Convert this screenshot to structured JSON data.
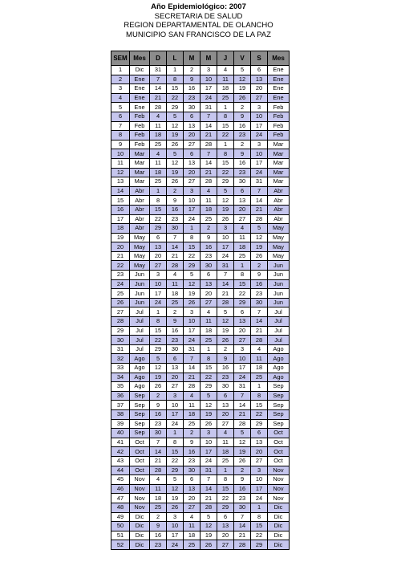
{
  "header": {
    "title": "Año Epidemiológico: 2007",
    "line2": "SECRETARIA DE SALUD",
    "line3": "REGION DEPARTAMENTAL DE OLANCHO",
    "line4": "MUNICIPIO SAN FRANCISCO DE LA PAZ"
  },
  "columns": [
    "SEM",
    "Mes",
    "D",
    "L",
    "M",
    "M",
    "J",
    "V",
    "S",
    "Mes"
  ],
  "colors": {
    "header_bg": "#8c8c8c",
    "alt_row_bg": "#c6c6ee",
    "row_bg": "#ffffff",
    "border": "#000000"
  },
  "weeks": [
    [
      "1",
      "Dic",
      "31",
      "1",
      "2",
      "3",
      "4",
      "5",
      "6",
      "Ene"
    ],
    [
      "2",
      "Ene",
      "7",
      "8",
      "9",
      "10",
      "11",
      "12",
      "13",
      "Ene"
    ],
    [
      "3",
      "Ene",
      "14",
      "15",
      "16",
      "17",
      "18",
      "19",
      "20",
      "Ene"
    ],
    [
      "4",
      "Ene",
      "21",
      "22",
      "23",
      "24",
      "25",
      "26",
      "27",
      "Ene"
    ],
    [
      "5",
      "Ene",
      "28",
      "29",
      "30",
      "31",
      "1",
      "2",
      "3",
      "Feb"
    ],
    [
      "6",
      "Feb",
      "4",
      "5",
      "6",
      "7",
      "8",
      "9",
      "10",
      "Feb"
    ],
    [
      "7",
      "Feb",
      "11",
      "12",
      "13",
      "14",
      "15",
      "16",
      "17",
      "Feb"
    ],
    [
      "8",
      "Feb",
      "18",
      "19",
      "20",
      "21",
      "22",
      "23",
      "24",
      "Feb"
    ],
    [
      "9",
      "Feb",
      "25",
      "26",
      "27",
      "28",
      "1",
      "2",
      "3",
      "Mar"
    ],
    [
      "10",
      "Mar",
      "4",
      "5",
      "6",
      "7",
      "8",
      "9",
      "10",
      "Mar"
    ],
    [
      "11",
      "Mar",
      "11",
      "12",
      "13",
      "14",
      "15",
      "16",
      "17",
      "Mar"
    ],
    [
      "12",
      "Mar",
      "18",
      "19",
      "20",
      "21",
      "22",
      "23",
      "24",
      "Mar"
    ],
    [
      "13",
      "Mar",
      "25",
      "26",
      "27",
      "28",
      "29",
      "30",
      "31",
      "Mar"
    ],
    [
      "14",
      "Abr",
      "1",
      "2",
      "3",
      "4",
      "5",
      "6",
      "7",
      "Abr"
    ],
    [
      "15",
      "Abr",
      "8",
      "9",
      "10",
      "11",
      "12",
      "13",
      "14",
      "Abr"
    ],
    [
      "16",
      "Abr",
      "15",
      "16",
      "17",
      "18",
      "19",
      "20",
      "21",
      "Abr"
    ],
    [
      "17",
      "Abr",
      "22",
      "23",
      "24",
      "25",
      "26",
      "27",
      "28",
      "Abr"
    ],
    [
      "18",
      "Abr",
      "29",
      "30",
      "1",
      "2",
      "3",
      "4",
      "5",
      "May"
    ],
    [
      "19",
      "May",
      "6",
      "7",
      "8",
      "9",
      "10",
      "11",
      "12",
      "May"
    ],
    [
      "20",
      "May",
      "13",
      "14",
      "15",
      "16",
      "17",
      "18",
      "19",
      "May"
    ],
    [
      "21",
      "May",
      "20",
      "21",
      "22",
      "23",
      "24",
      "25",
      "26",
      "May"
    ],
    [
      "22",
      "May",
      "27",
      "28",
      "29",
      "30",
      "31",
      "1",
      "2",
      "Jun"
    ],
    [
      "23",
      "Jun",
      "3",
      "4",
      "5",
      "6",
      "7",
      "8",
      "9",
      "Jun"
    ],
    [
      "24",
      "Jun",
      "10",
      "11",
      "12",
      "13",
      "14",
      "15",
      "16",
      "Jun"
    ],
    [
      "25",
      "Jun",
      "17",
      "18",
      "19",
      "20",
      "21",
      "22",
      "23",
      "Jun"
    ],
    [
      "26",
      "Jun",
      "24",
      "25",
      "26",
      "27",
      "28",
      "29",
      "30",
      "Jun"
    ],
    [
      "27",
      "Jul",
      "1",
      "2",
      "3",
      "4",
      "5",
      "6",
      "7",
      "Jul"
    ],
    [
      "28",
      "Jul",
      "8",
      "9",
      "10",
      "11",
      "12",
      "13",
      "14",
      "Jul"
    ],
    [
      "29",
      "Jul",
      "15",
      "16",
      "17",
      "18",
      "19",
      "20",
      "21",
      "Jul"
    ],
    [
      "30",
      "Jul",
      "22",
      "23",
      "24",
      "25",
      "26",
      "27",
      "28",
      "Jul"
    ],
    [
      "31",
      "Jul",
      "29",
      "30",
      "31",
      "1",
      "2",
      "3",
      "4",
      "Ago"
    ],
    [
      "32",
      "Ago",
      "5",
      "6",
      "7",
      "8",
      "9",
      "10",
      "11",
      "Ago"
    ],
    [
      "33",
      "Ago",
      "12",
      "13",
      "14",
      "15",
      "16",
      "17",
      "18",
      "Ago"
    ],
    [
      "34",
      "Ago",
      "19",
      "20",
      "21",
      "22",
      "23",
      "24",
      "25",
      "Ago"
    ],
    [
      "35",
      "Ago",
      "26",
      "27",
      "28",
      "29",
      "30",
      "31",
      "1",
      "Sep"
    ],
    [
      "36",
      "Sep",
      "2",
      "3",
      "4",
      "5",
      "6",
      "7",
      "8",
      "Sep"
    ],
    [
      "37",
      "Sep",
      "9",
      "10",
      "11",
      "12",
      "13",
      "14",
      "15",
      "Sep"
    ],
    [
      "38",
      "Sep",
      "16",
      "17",
      "18",
      "19",
      "20",
      "21",
      "22",
      "Sep"
    ],
    [
      "39",
      "Sep",
      "23",
      "24",
      "25",
      "26",
      "27",
      "28",
      "29",
      "Sep"
    ],
    [
      "40",
      "Sep",
      "30",
      "1",
      "2",
      "3",
      "4",
      "5",
      "6",
      "Oct"
    ],
    [
      "41",
      "Oct",
      "7",
      "8",
      "9",
      "10",
      "11",
      "12",
      "13",
      "Oct"
    ],
    [
      "42",
      "Oct",
      "14",
      "15",
      "16",
      "17",
      "18",
      "19",
      "20",
      "Oct"
    ],
    [
      "43",
      "Oct",
      "21",
      "22",
      "23",
      "24",
      "25",
      "26",
      "27",
      "Oct"
    ],
    [
      "44",
      "Oct",
      "28",
      "29",
      "30",
      "31",
      "1",
      "2",
      "3",
      "Nov"
    ],
    [
      "45",
      "Nov",
      "4",
      "5",
      "6",
      "7",
      "8",
      "9",
      "10",
      "Nov"
    ],
    [
      "46",
      "Nov",
      "11",
      "12",
      "13",
      "14",
      "15",
      "16",
      "17",
      "Nov"
    ],
    [
      "47",
      "Nov",
      "18",
      "19",
      "20",
      "21",
      "22",
      "23",
      "24",
      "Nov"
    ],
    [
      "48",
      "Nov",
      "25",
      "26",
      "27",
      "28",
      "29",
      "30",
      "1",
      "Dic"
    ],
    [
      "49",
      "Dic",
      "2",
      "3",
      "4",
      "5",
      "6",
      "7",
      "8",
      "Dic"
    ],
    [
      "50",
      "Dic",
      "9",
      "10",
      "11",
      "12",
      "13",
      "14",
      "15",
      "Dic"
    ],
    [
      "51",
      "Dic",
      "16",
      "17",
      "18",
      "19",
      "20",
      "21",
      "22",
      "Dic"
    ],
    [
      "52",
      "Dic",
      "23",
      "24",
      "25",
      "26",
      "27",
      "28",
      "29",
      "Dic"
    ]
  ]
}
